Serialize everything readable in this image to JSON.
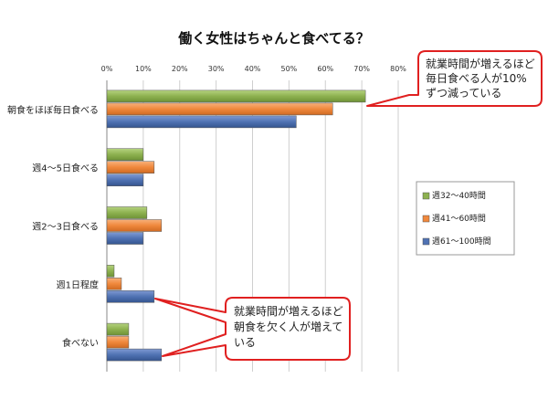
{
  "chart_data": {
    "type": "bar",
    "orientation": "horizontal",
    "title": "働く女性はちゃんと食べてる？",
    "categories": [
      "朝食をほぼ毎日食べる",
      "週4～5日食べる",
      "週2～3日食べる",
      "週1日程度",
      "食べない"
    ],
    "series": [
      {
        "name": "週32～40時間",
        "values": [
          71,
          10,
          11,
          2,
          6
        ],
        "color": "#8db14f"
      },
      {
        "name": "週41～60時間",
        "values": [
          62,
          13,
          15,
          4,
          6
        ],
        "color": "#f0883c"
      },
      {
        "name": "週61～100時間",
        "values": [
          52,
          10,
          10,
          13,
          15
        ],
        "color": "#4f72b3"
      }
    ],
    "xlim": [
      0,
      80
    ],
    "ticks": [
      "0%",
      "10%",
      "20%",
      "30%",
      "40%",
      "50%",
      "60%",
      "70%",
      "80%"
    ],
    "grid": true,
    "legend_position": "right",
    "annotations": [
      {
        "lines": [
          "就業時間が増えるほど",
          "毎日食べる人が10%",
          "ずつ減っている"
        ],
        "points_to": "朝食をほぼ毎日食べる"
      },
      {
        "lines": [
          "就業時間が増えるほど",
          "朝食を欠く人が増えて",
          "いる"
        ],
        "points_to": [
          "週1日程度",
          "食べない"
        ]
      }
    ]
  }
}
